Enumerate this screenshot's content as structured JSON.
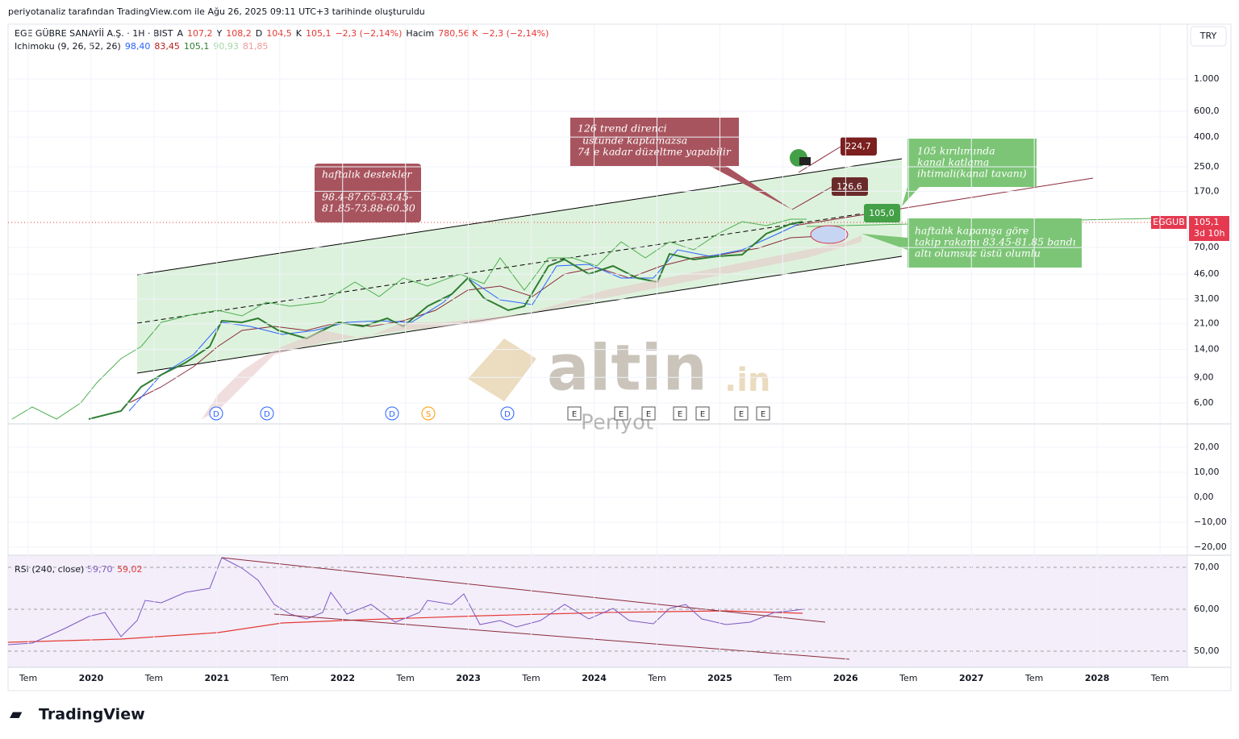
{
  "header": {
    "title": "periyotanaliz tarafından TradingView.com ile Ağu 26, 2025 09:11 UTC+3 tarihinde oluşturuldu"
  },
  "legend": {
    "symbol": "EGE GÜBRE SANAYİİ A.Ş. · 1H · BIST",
    "open_label": "A",
    "open": "107,2",
    "high_label": "Y",
    "high": "108,2",
    "low_label": "D",
    "low": "104,5",
    "close_label": "K",
    "close": "105,1",
    "change": "−2,3 (−2,14%)",
    "volume_label": "Hacim",
    "volume": "780,56 K",
    "volume_change": "−2,3 (−2,14%)"
  },
  "ichimoku": {
    "name": "Ichimoku (9, 26, 52, 26)",
    "values": [
      "98,40",
      "83,45",
      "105,1",
      "90,93",
      "81,85"
    ]
  },
  "currency": "TRY",
  "price_axis": {
    "ticks": [
      {
        "value": 1000,
        "label": "1.000"
      },
      {
        "value": 600,
        "label": "600,0"
      },
      {
        "value": 400,
        "label": "400,0"
      },
      {
        "value": 250,
        "label": "250,0"
      },
      {
        "value": 170,
        "label": "170,0"
      },
      {
        "value": 70,
        "label": "70,00"
      },
      {
        "value": 46,
        "label": "46,00"
      },
      {
        "value": 31,
        "label": "31,00"
      },
      {
        "value": 21,
        "label": "21,00"
      },
      {
        "value": 14,
        "label": "14,00"
      },
      {
        "value": 9,
        "label": "9,00"
      },
      {
        "value": 6,
        "label": "6,00"
      }
    ]
  },
  "price_tag": {
    "symbol": "EGGUB",
    "price": "105,1",
    "countdown": "3d 10h"
  },
  "middle_axis": {
    "ticks": [
      {
        "value": 20,
        "label": "20,00"
      },
      {
        "value": 10,
        "label": "10,00"
      },
      {
        "value": 0,
        "label": "0,00"
      },
      {
        "value": -10,
        "label": "−10,00"
      },
      {
        "value": -20,
        "label": "−20,00"
      }
    ]
  },
  "rsi": {
    "name": "RSI (240, close)",
    "value": "59,70",
    "ma": "59,02",
    "ticks": [
      {
        "value": 70,
        "label": "70,00"
      },
      {
        "value": 60,
        "label": "60,00"
      },
      {
        "value": 50,
        "label": "50,00"
      }
    ]
  },
  "time_axis": [
    "Tem",
    "2020",
    "Tem",
    "2021",
    "Tem",
    "2022",
    "Tem",
    "2023",
    "Tem",
    "2024",
    "Tem",
    "2025",
    "Tem",
    "2026",
    "Tem",
    "2027",
    "Tem",
    "2028",
    "Tem"
  ],
  "annotations": {
    "support": [
      "haftalık destekler",
      "98.4-87.65-83.45-",
      "81.85-73.88-60.30"
    ],
    "resistance": [
      "126 trend direnci",
      "üstünde kaptamazsa",
      "74 e kadar düzeltme yapabilir"
    ],
    "breakout": [
      "105 kırılımında",
      "kanal katlama",
      "ihtimali(kanal tavanı)"
    ],
    "weekly": [
      "haftalık kapanışa göre",
      "takip rakamı 83.45-81.85 bandı",
      "altı olumsuz üstü olumlu"
    ],
    "target_high": "224,7",
    "target_mid": "126,6",
    "level": "105,0"
  },
  "events": [
    "D",
    "D",
    "D",
    "S",
    "D",
    "E",
    "E",
    "E",
    "E",
    "E",
    "E",
    "E"
  ],
  "watermark": {
    "brand": "altin",
    "suffix": ".in",
    "sub": "Periyot"
  },
  "footer": {
    "logo": "TradingView"
  }
}
